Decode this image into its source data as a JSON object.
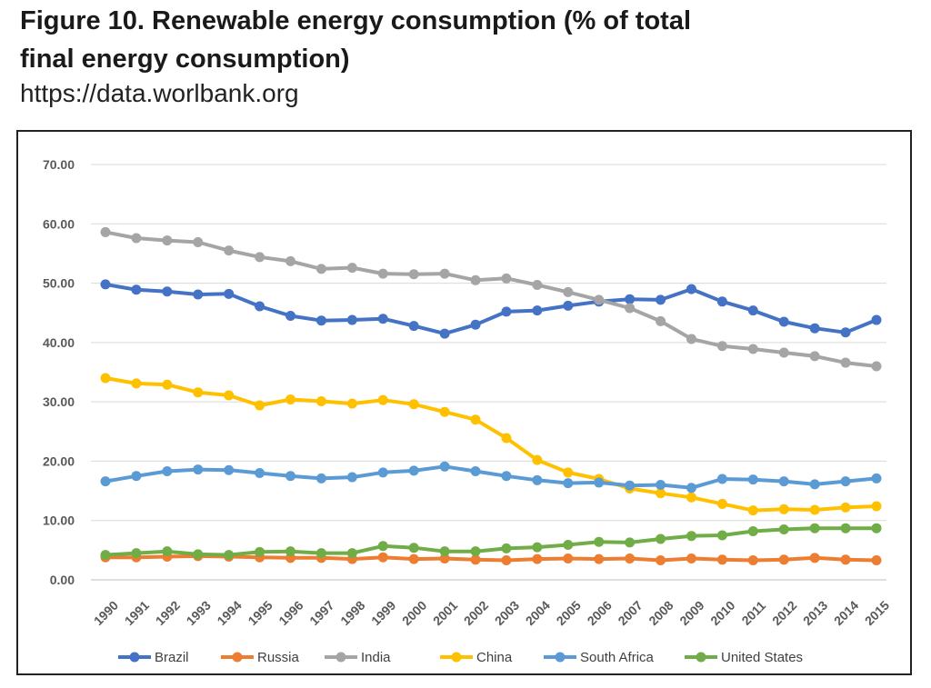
{
  "figure": {
    "title": "Figure 10. Renewable energy consumption (% of total final energy consumption)",
    "source": "https://data.worlbank.org"
  },
  "chart_data": {
    "type": "line",
    "title": "Renewable energy consumption (% of total final energy consumption)",
    "xlabel": "",
    "ylabel": "",
    "ylim": [
      0,
      70
    ],
    "yticks": [
      "0.00",
      "10.00",
      "20.00",
      "30.00",
      "40.00",
      "50.00",
      "60.00",
      "70.00"
    ],
    "grid": true,
    "legend_position": "bottom",
    "x": [
      "1990",
      "1991",
      "1992",
      "1993",
      "1994",
      "1995",
      "1996",
      "1997",
      "1998",
      "1999",
      "2000",
      "2001",
      "2002",
      "2003",
      "2004",
      "2005",
      "2006",
      "2007",
      "2008",
      "2009",
      "2010",
      "2011",
      "2012",
      "2013",
      "2014",
      "2015"
    ],
    "series": [
      {
        "name": "Brazil",
        "color": "#4472C4",
        "values": [
          49.8,
          48.9,
          48.6,
          48.1,
          48.2,
          46.1,
          44.5,
          43.7,
          43.8,
          44.0,
          42.8,
          41.5,
          43.0,
          45.2,
          45.4,
          46.2,
          46.9,
          47.3,
          47.2,
          49.0,
          46.9,
          45.4,
          43.5,
          42.4,
          41.7,
          43.8
        ]
      },
      {
        "name": "Russia",
        "color": "#ED7D31",
        "values": [
          3.8,
          3.8,
          3.9,
          4.0,
          3.9,
          3.8,
          3.7,
          3.7,
          3.5,
          3.8,
          3.5,
          3.6,
          3.4,
          3.3,
          3.5,
          3.6,
          3.5,
          3.6,
          3.3,
          3.6,
          3.4,
          3.3,
          3.4,
          3.7,
          3.4,
          3.3
        ]
      },
      {
        "name": "India",
        "color": "#A5A5A5",
        "values": [
          58.6,
          57.6,
          57.2,
          56.9,
          55.5,
          54.4,
          53.7,
          52.4,
          52.6,
          51.6,
          51.5,
          51.6,
          50.5,
          50.8,
          49.7,
          48.5,
          47.2,
          45.8,
          43.6,
          40.6,
          39.4,
          38.9,
          38.3,
          37.7,
          36.6,
          36.0
        ]
      },
      {
        "name": "China",
        "color": "#FFC000",
        "values": [
          34.0,
          33.1,
          32.9,
          31.6,
          31.1,
          29.4,
          30.4,
          30.1,
          29.7,
          30.3,
          29.6,
          28.3,
          27.0,
          23.9,
          20.2,
          18.1,
          17.0,
          15.4,
          14.6,
          13.9,
          12.8,
          11.7,
          11.9,
          11.8,
          12.2,
          12.4
        ]
      },
      {
        "name": "South Africa",
        "color": "#5B9BD5",
        "values": [
          16.6,
          17.5,
          18.3,
          18.6,
          18.5,
          18.0,
          17.5,
          17.1,
          17.3,
          18.1,
          18.4,
          19.1,
          18.3,
          17.5,
          16.8,
          16.3,
          16.4,
          15.9,
          16.0,
          15.5,
          17.0,
          16.9,
          16.6,
          16.1,
          16.6,
          17.1
        ]
      },
      {
        "name": "United States",
        "color": "#70AD47",
        "values": [
          4.2,
          4.5,
          4.8,
          4.3,
          4.2,
          4.7,
          4.8,
          4.5,
          4.5,
          5.7,
          5.4,
          4.8,
          4.8,
          5.3,
          5.5,
          5.9,
          6.4,
          6.3,
          6.9,
          7.4,
          7.5,
          8.2,
          8.5,
          8.7,
          8.7,
          8.7
        ]
      }
    ]
  }
}
